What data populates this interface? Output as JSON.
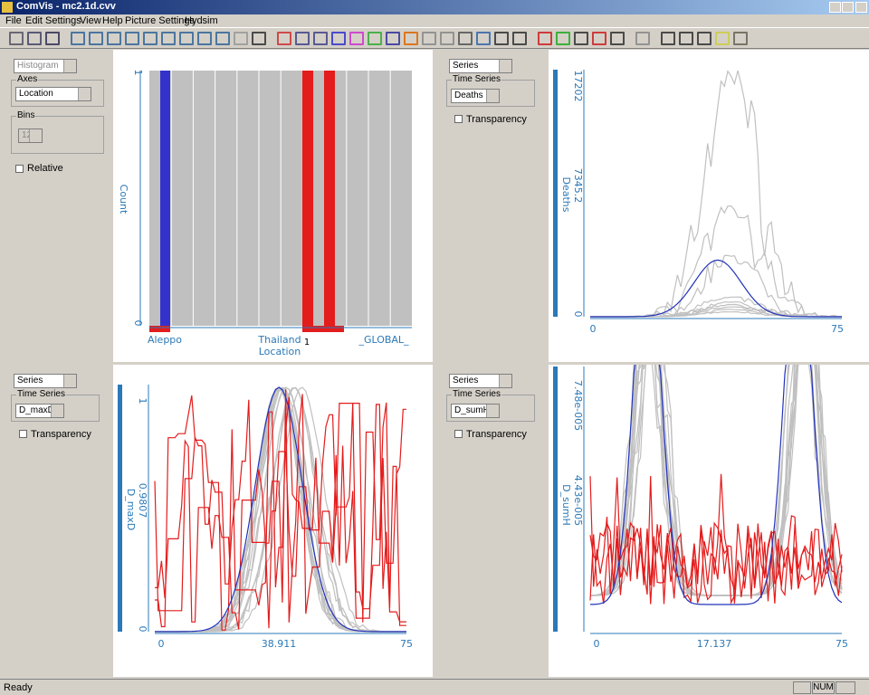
{
  "window": {
    "title": "ComVis - mc2.1d.cvv"
  },
  "menu": [
    "File",
    "Edit",
    "Settings",
    "View",
    "Help",
    "Picture Settings",
    "Hydsim"
  ],
  "panels": [
    {
      "view": "Histogram",
      "axes_label": "Axes",
      "axis": "Location",
      "bins_label": "Bins",
      "bins": "12",
      "option": "Relative",
      "y_label": "Count",
      "y_ticks": [
        "1",
        "0"
      ],
      "x_label": "Location",
      "x_categories": [
        "Aleppo",
        "Thailand",
        "_GLOBAL_"
      ],
      "selection_label": "1"
    },
    {
      "view": "Series",
      "group_label": "Time Series",
      "variable": "Deaths",
      "option": "Transparency",
      "y_label": "Deaths",
      "y_ticks": [
        "17202",
        "7345.2",
        "0"
      ],
      "x_ticks": [
        "0",
        "75"
      ]
    },
    {
      "view": "Series",
      "group_label": "Time Series",
      "variable": "D_maxD",
      "option": "Transparency",
      "y_label": "D_maxD",
      "y_ticks": [
        "1",
        "0.9807",
        "0"
      ],
      "x_ticks": [
        "0",
        "38.911",
        "75"
      ]
    },
    {
      "view": "Series",
      "group_label": "Time Series",
      "variable": "D_sumH",
      "option": "Transparency",
      "y_label": "D_sumH",
      "y_ticks": [
        "7.48e-005",
        "4.43e-005"
      ],
      "x_ticks": [
        "0",
        "17.137",
        "75"
      ]
    }
  ],
  "status": {
    "text": "Ready",
    "indicator": "NUM"
  }
}
